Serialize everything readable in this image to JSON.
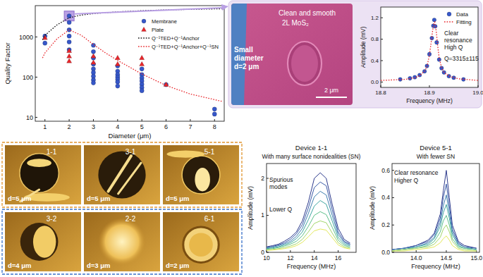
{
  "chart_data": [
    {
      "type": "scatter",
      "log": "y",
      "legend": "upper right",
      "x_label": "Diameter (μm)",
      "y_label": "Quality Factor",
      "xlim": [
        0.6,
        8.4
      ],
      "xticks": [
        1,
        2,
        3,
        4,
        5,
        6,
        7,
        8
      ],
      "ylim": [
        8,
        6000
      ],
      "yticks": [
        10,
        100,
        1000
      ],
      "series": [
        {
          "name": "Membrane",
          "type": "scatter",
          "marker": "circle",
          "color": "#3657c9",
          "x": [
            1,
            1,
            2,
            2,
            2,
            2,
            2,
            2,
            3,
            3,
            3,
            3,
            3,
            3,
            3,
            3,
            3,
            4,
            4,
            4,
            4,
            4,
            4,
            4,
            5,
            5,
            5,
            5,
            5,
            5,
            5,
            6,
            8,
            8
          ],
          "values": [
            1050,
            700,
            3315,
            2300,
            1500,
            1050,
            750,
            480,
            620,
            430,
            300,
            210,
            160,
            130,
            105,
            85,
            72,
            190,
            140,
            115,
            100,
            88,
            76,
            60,
            160,
            115,
            95,
            80,
            66,
            55,
            46,
            65,
            16,
            12
          ]
        },
        {
          "name": "Plate",
          "type": "scatter",
          "marker": "triangle",
          "color": "#e8262b",
          "x": [
            1,
            2,
            2,
            2,
            3,
            3,
            4,
            4,
            5,
            5,
            6
          ],
          "values": [
            950,
            450,
            330,
            250,
            330,
            230,
            300,
            210,
            300,
            210,
            65
          ]
        },
        {
          "name": "Q⁻¹TED+Q⁻¹Anchor",
          "type": "line",
          "line_style": "dotted",
          "color": "#111111",
          "x": [
            0.9,
            1,
            1.5,
            2,
            2.5,
            3,
            4,
            5,
            6,
            7,
            8.3
          ],
          "values": [
            850,
            1100,
            2000,
            3000,
            3500,
            3800,
            4200,
            4500,
            4700,
            4850,
            5000
          ]
        },
        {
          "name": "Q⁻¹TED+Q⁻¹Anchor+Q⁻¹SN",
          "type": "line",
          "line_style": "dotted",
          "color": "#e8262b",
          "x": [
            0.9,
            1,
            1.5,
            2,
            2.5,
            3,
            3.5,
            4,
            5,
            6,
            7,
            8.3
          ],
          "values": [
            300,
            400,
            900,
            1500,
            1100,
            650,
            400,
            260,
            120,
            62,
            38,
            25
          ]
        }
      ]
    },
    {
      "type": "scatter",
      "legend": "upper right",
      "x_label": "Frequency (MHz)",
      "y_label": "Amplitude (mV)",
      "annotations": [
        "Clear",
        "resonance",
        "High Q",
        "Q=3315±115"
      ],
      "xlim": [
        18.8,
        19.0
      ],
      "xticks": [
        18.8,
        18.9,
        {
          "value": 19,
          "label": "19.0"
        }
      ],
      "ylim": [
        -0.1,
        1.4
      ],
      "yticks": [
        {
          "value": 0,
          "label": "0.0"
        },
        0.4,
        0.8,
        1.2
      ],
      "series": [
        {
          "name": "Data",
          "type": "scatter",
          "marker": "circle",
          "color": "#3657c9",
          "x": [
            18.84,
            18.86,
            18.87,
            18.88,
            18.89,
            18.895,
            18.9,
            18.905,
            18.908,
            18.91,
            18.912,
            18.915,
            18.92,
            18.925,
            18.93,
            18.94,
            18.95,
            18.97
          ],
          "values": [
            0.05,
            0.07,
            0.09,
            0.13,
            0.2,
            0.3,
            0.52,
            0.82,
            1.05,
            1.16,
            1.04,
            0.74,
            0.42,
            0.26,
            0.18,
            0.11,
            0.08,
            0.05
          ]
        },
        {
          "name": "Fitting",
          "type": "line",
          "line_style": "dotted",
          "color": "#e8262b",
          "x": [
            18.8,
            18.85,
            18.87,
            18.88,
            18.89,
            18.895,
            18.9,
            18.903,
            18.906,
            18.909,
            18.911,
            18.914,
            18.917,
            18.92,
            18.925,
            18.93,
            18.94,
            18.96,
            19.0
          ],
          "values": [
            0.03,
            0.05,
            0.08,
            0.12,
            0.2,
            0.29,
            0.5,
            0.7,
            0.92,
            1.1,
            1.12,
            0.95,
            0.68,
            0.45,
            0.27,
            0.18,
            0.11,
            0.06,
            0.03
          ]
        }
      ]
    },
    {
      "type": "line",
      "title": "Device 1-1",
      "subtitle": "With many surface nonidealities (SN)",
      "x_label": "Frequency (MHz)",
      "y_label": "Amplitude (mV)",
      "annotations": [
        "Spurious",
        "modes",
        "Lower Q"
      ],
      "x": [
        10,
        10.5,
        11,
        11.5,
        12,
        12.5,
        13,
        13.5,
        14,
        14.5,
        15,
        15.5,
        16,
        16.5,
        17
      ],
      "xlim": [
        10,
        17.5
      ],
      "xticks": [
        10,
        12,
        14,
        16
      ],
      "ylim": [
        0,
        2.4
      ],
      "yticks": [
        0,
        1,
        2
      ],
      "series": [
        {
          "color": "#2d3a8c",
          "values": [
            0.15,
            0.18,
            0.22,
            0.3,
            0.4,
            0.55,
            0.85,
            1.35,
            2.0,
            2.15,
            2.0,
            1.3,
            0.65,
            0.35,
            0.25
          ]
        },
        {
          "color": "#3a5ba8",
          "values": [
            0.13,
            0.16,
            0.2,
            0.26,
            0.35,
            0.5,
            0.75,
            1.2,
            1.75,
            1.9,
            1.8,
            1.15,
            0.55,
            0.3,
            0.22
          ]
        },
        {
          "color": "#3f7fb0",
          "values": [
            0.12,
            0.14,
            0.18,
            0.23,
            0.3,
            0.43,
            0.65,
            1.05,
            1.5,
            1.65,
            1.55,
            1.0,
            0.48,
            0.27,
            0.2
          ]
        },
        {
          "color": "#3ea6a0",
          "values": [
            0.1,
            0.12,
            0.15,
            0.2,
            0.26,
            0.37,
            0.55,
            0.88,
            1.25,
            1.4,
            1.3,
            0.85,
            0.4,
            0.23,
            0.17
          ]
        },
        {
          "color": "#5cc08a",
          "values": [
            0.08,
            0.1,
            0.13,
            0.17,
            0.22,
            0.3,
            0.45,
            0.7,
            1.0,
            1.1,
            1.02,
            0.68,
            0.33,
            0.19,
            0.14
          ]
        },
        {
          "color": "#a2d66b",
          "values": [
            0.07,
            0.08,
            0.1,
            0.13,
            0.17,
            0.23,
            0.35,
            0.55,
            0.78,
            0.85,
            0.8,
            0.52,
            0.26,
            0.15,
            0.11
          ]
        },
        {
          "color": "#e3e85a",
          "values": [
            0.05,
            0.06,
            0.08,
            0.1,
            0.13,
            0.18,
            0.27,
            0.42,
            0.58,
            0.63,
            0.6,
            0.4,
            0.2,
            0.12,
            0.09
          ]
        }
      ]
    },
    {
      "type": "line",
      "title": "Device 5-1",
      "subtitle": "With fewer SN",
      "x_label": "Frequency (MHz)",
      "y_label": "Amplitude (mV)",
      "annotations": [
        "Clear resonance",
        "Higher Q"
      ],
      "x": [
        13.6,
        13.8,
        14.0,
        14.2,
        14.3,
        14.4,
        14.45,
        14.5,
        14.55,
        14.6,
        14.7,
        14.8,
        15.0
      ],
      "xlim": [
        13.6,
        15.05
      ],
      "xticks": [
        {
          "value": 14,
          "label": "14.0"
        },
        14.5,
        {
          "value": 15,
          "label": "15.0"
        }
      ],
      "ylim": [
        0,
        0.65
      ],
      "yticks": [
        {
          "value": 0,
          "label": "0.0"
        },
        0.2,
        0.4,
        0.6
      ],
      "series": [
        {
          "color": "#2d3a8c",
          "values": [
            0.02,
            0.03,
            0.05,
            0.09,
            0.14,
            0.28,
            0.45,
            0.6,
            0.4,
            0.2,
            0.08,
            0.05,
            0.03
          ]
        },
        {
          "color": "#3a5ba8",
          "values": [
            0.02,
            0.03,
            0.05,
            0.08,
            0.13,
            0.25,
            0.4,
            0.5,
            0.34,
            0.17,
            0.07,
            0.04,
            0.03
          ]
        },
        {
          "color": "#3f7fb0",
          "values": [
            0.02,
            0.03,
            0.04,
            0.07,
            0.11,
            0.22,
            0.34,
            0.42,
            0.29,
            0.15,
            0.06,
            0.04,
            0.02
          ]
        },
        {
          "color": "#3ea6a0",
          "values": [
            0.01,
            0.02,
            0.04,
            0.06,
            0.1,
            0.19,
            0.29,
            0.35,
            0.25,
            0.13,
            0.05,
            0.03,
            0.02
          ]
        },
        {
          "color": "#5cc08a",
          "values": [
            0.01,
            0.02,
            0.03,
            0.05,
            0.08,
            0.15,
            0.23,
            0.27,
            0.2,
            0.1,
            0.04,
            0.03,
            0.02
          ]
        },
        {
          "color": "#a2d66b",
          "values": [
            0.01,
            0.02,
            0.03,
            0.04,
            0.06,
            0.11,
            0.17,
            0.2,
            0.15,
            0.08,
            0.03,
            0.02,
            0.01
          ]
        },
        {
          "color": "#e3e85a",
          "values": [
            0.01,
            0.01,
            0.02,
            0.03,
            0.04,
            0.07,
            0.1,
            0.12,
            0.09,
            0.05,
            0.02,
            0.01,
            0.01
          ]
        }
      ]
    }
  ],
  "sem_image": {
    "texts": [
      "Clean and smooth",
      "2L MoS₂"
    ],
    "diameter_texts": [
      "Small",
      "diameter",
      "d=2 μm"
    ],
    "scale_bar": "2 μm"
  },
  "afm_images": [
    [
      {
        "id": "1-1",
        "diameter": "d=5 μm"
      },
      {
        "id": "3-1",
        "diameter": "d=5 μm"
      },
      {
        "id": "5-1",
        "diameter": "d=5 μm"
      }
    ],
    [
      {
        "id": "3-2",
        "diameter": "d=4 μm"
      },
      {
        "id": "2-2",
        "diameter": "d=3 μm"
      },
      {
        "id": "6-1",
        "diameter": "d=2 μm"
      }
    ]
  ]
}
